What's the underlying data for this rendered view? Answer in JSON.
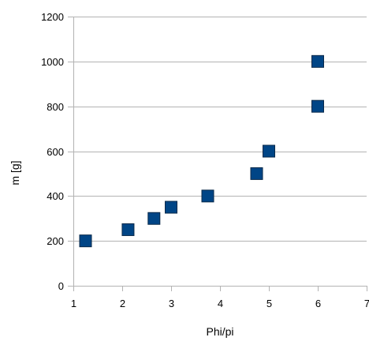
{
  "chart_data": {
    "type": "scatter",
    "title": "",
    "xlabel": "Phi/pi",
    "ylabel": "m [g]",
    "xlim": [
      1,
      7
    ],
    "ylim": [
      0,
      1200
    ],
    "xticks": [
      1,
      2,
      3,
      4,
      5,
      6,
      7
    ],
    "yticks": [
      0,
      200,
      400,
      600,
      800,
      1000,
      1200
    ],
    "grid": {
      "horizontal": true,
      "vertical": false
    },
    "legend": "none",
    "series": [
      {
        "color": "#004586",
        "marker": "square",
        "points": [
          {
            "x": 1.25,
            "y": 200
          },
          {
            "x": 2.12,
            "y": 250
          },
          {
            "x": 2.65,
            "y": 300
          },
          {
            "x": 3.0,
            "y": 350
          },
          {
            "x": 3.75,
            "y": 400
          },
          {
            "x": 4.75,
            "y": 500
          },
          {
            "x": 5.0,
            "y": 600
          },
          {
            "x": 6.0,
            "y": 800
          },
          {
            "x": 6.0,
            "y": 1000
          }
        ]
      }
    ]
  }
}
